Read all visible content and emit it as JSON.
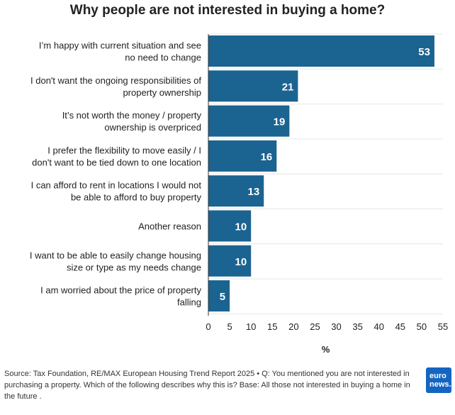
{
  "chart_data": {
    "type": "bar",
    "orientation": "horizontal",
    "title": "Why people are not interested in buying a home?",
    "categories": [
      [
        "I’m happy with current situation and see",
        "no need to change"
      ],
      [
        "I don't want the ongoing responsibilities of",
        "property ownership"
      ],
      [
        "It’s not worth the money / property",
        "ownership is overpriced"
      ],
      [
        "I prefer the flexibility to move easily / I",
        "don't want to be tied down to one location"
      ],
      [
        "I can afford to rent in locations I would not",
        "be able to afford to buy property"
      ],
      [
        "Another reason"
      ],
      [
        "I want to be able to easily change housing",
        "size or type as my needs change"
      ],
      [
        "I am worried about the price of property",
        "falling"
      ]
    ],
    "values": [
      53,
      21,
      19,
      16,
      13,
      10,
      10,
      5
    ],
    "xlabel": "%",
    "xlim": [
      0,
      55
    ],
    "xticks": [
      0,
      5,
      10,
      15,
      20,
      25,
      30,
      35,
      40,
      45,
      50,
      55
    ],
    "grid": true,
    "bar_color": "#1b6390"
  },
  "source": "Source: Tax Foundation, RE/MAX European Housing Trend Report 2025 • Q: You mentioned you are not interested in purchasing a property. Which of the following describes why this is? Base: All those not interested in buying a home in the future .",
  "logo": {
    "line1": "euro",
    "line2": "news."
  }
}
